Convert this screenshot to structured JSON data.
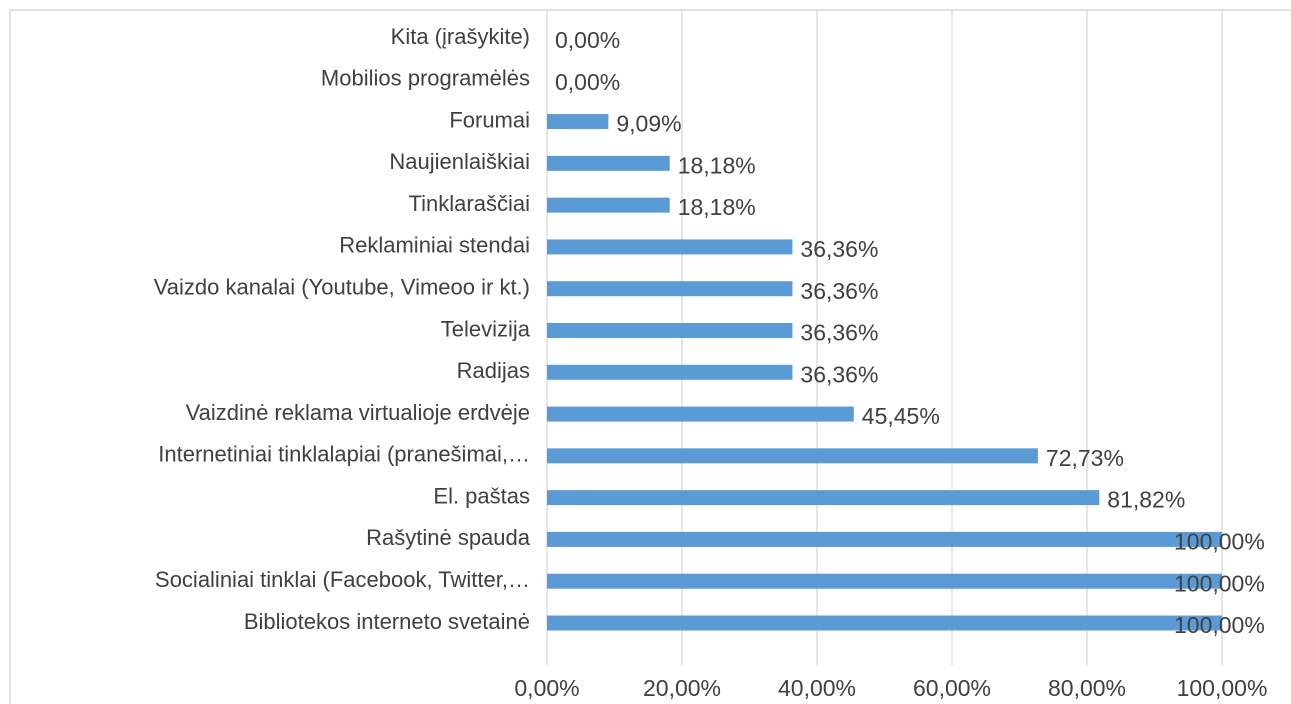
{
  "chart_data": {
    "type": "bar",
    "orientation": "horizontal",
    "categories": [
      "Kita (įrašykite)",
      "Mobilios programėlės",
      "Forumai",
      "Naujienlaiškiai",
      "Tinklaraščiai",
      "Reklaminiai stendai",
      "Vaizdo kanalai (Youtube, Vimeoo ir kt.)",
      "Televizija",
      "Radijas",
      "Vaizdinė reklama virtualioje erdvėje",
      "Internetiniai tinklalapiai (pranešimai,…",
      "El. paštas",
      "Rašytinė spauda",
      "Socialiniai tinklai (Facebook, Twitter,…",
      "Bibliotekos interneto svetainė"
    ],
    "values": [
      0,
      0,
      9.09,
      18.18,
      18.18,
      36.36,
      36.36,
      36.36,
      36.36,
      45.45,
      72.73,
      81.82,
      100,
      100,
      100
    ],
    "value_labels": [
      "0,00%",
      "0,00%",
      "9,09%",
      "18,18%",
      "18,18%",
      "36,36%",
      "36,36%",
      "36,36%",
      "36,36%",
      "45,45%",
      "72,73%",
      "81,82%",
      "100,00%",
      "100,00%",
      "100,00%"
    ],
    "color": "#5b9bd5",
    "xlim": [
      0,
      100
    ],
    "xticks": [
      {
        "value": 0,
        "label": "0,00%"
      },
      {
        "value": 20,
        "label": "20,00%"
      },
      {
        "value": 40,
        "label": "40,00%"
      },
      {
        "value": 60,
        "label": "60,00%"
      },
      {
        "value": 80,
        "label": "80,00%"
      },
      {
        "value": 100,
        "label": "100,00%"
      }
    ],
    "grid": true
  }
}
